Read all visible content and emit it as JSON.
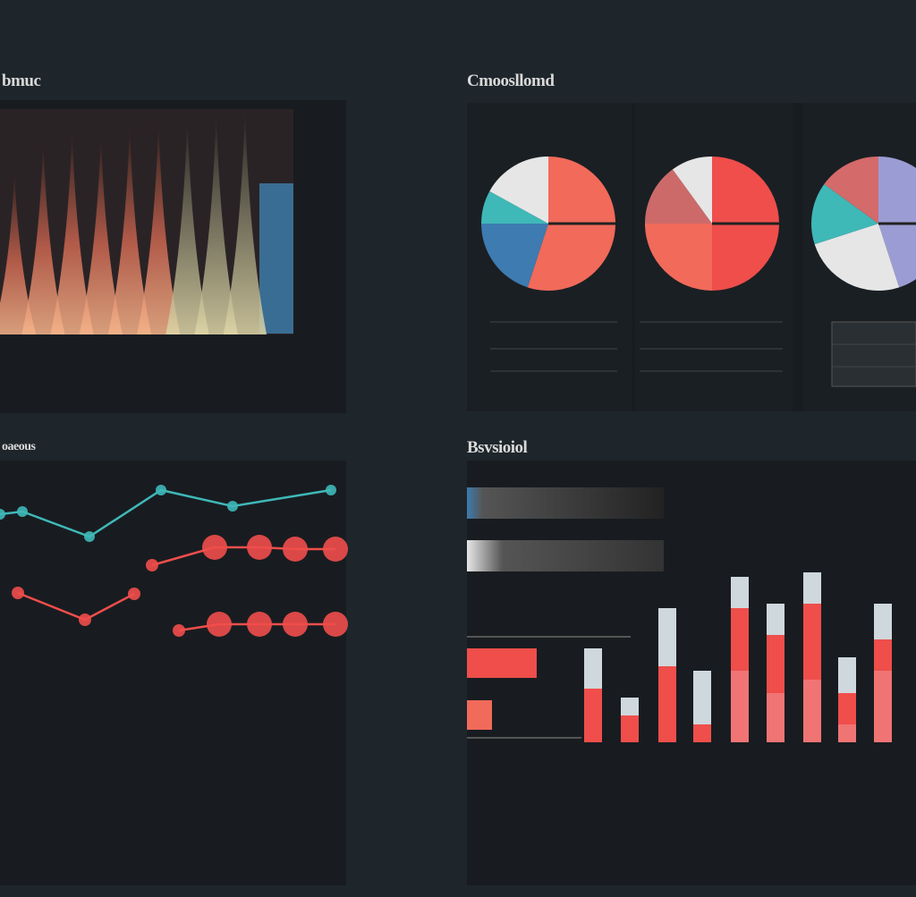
{
  "titles": {
    "top_left": "bmuc",
    "top_right": "Cmoosllomd",
    "bottom_left": "oaeous",
    "bottom_right": "Bsvsioiol"
  },
  "colors": {
    "background": "#1e262b",
    "panel": "#181c20",
    "red": "#ef4e4b",
    "salmon": "#f16a5a",
    "teal": "#3fb8b8",
    "blue": "#3d7bb0",
    "light_gray": "#cfd8dc",
    "lavender": "#9c9cd4"
  },
  "chart_data": [
    {
      "type": "area",
      "panel": "top-left",
      "series_count": 9,
      "description": "stacked glowing spikes",
      "values": [
        72,
        85,
        90,
        88,
        92,
        94,
        96,
        98,
        100
      ]
    },
    {
      "type": "pie",
      "panel": "top-right-1",
      "slices": [
        {
          "value": 55,
          "color": "#f16a5a"
        },
        {
          "value": 20,
          "color": "#3d7bb0"
        },
        {
          "value": 8,
          "color": "#3fb8b8"
        },
        {
          "value": 17,
          "color": "#e6e6e6"
        }
      ]
    },
    {
      "type": "pie",
      "panel": "top-right-2",
      "slices": [
        {
          "value": 50,
          "color": "#ef4e4b"
        },
        {
          "value": 25,
          "color": "#f16a5a"
        },
        {
          "value": 15,
          "color": "#cc6a6a"
        },
        {
          "value": 10,
          "color": "#e6e6e6"
        }
      ]
    },
    {
      "type": "pie",
      "panel": "top-right-3",
      "slices": [
        {
          "value": 45,
          "color": "#9c9cd4"
        },
        {
          "value": 25,
          "color": "#e6e6e6"
        },
        {
          "value": 15,
          "color": "#3fb8b8"
        },
        {
          "value": 15,
          "color": "#d46a6a"
        }
      ]
    },
    {
      "type": "line",
      "panel": "bottom-left",
      "series": [
        {
          "color": "#3fb8b8",
          "points": [
            [
              0,
              575
            ],
            [
              25,
              572
            ],
            [
              100,
              600
            ],
            [
              180,
              548
            ],
            [
              260,
              566
            ],
            [
              370,
              548
            ]
          ]
        },
        {
          "color": "#ef4e4b",
          "points": [
            [
              170,
              632
            ],
            [
              240,
              612
            ],
            [
              290,
              612
            ],
            [
              330,
              614
            ],
            [
              375,
              614
            ]
          ]
        },
        {
          "color": "#ef4e4b",
          "points": [
            [
              20,
              663
            ],
            [
              95,
              693
            ],
            [
              150,
              664
            ]
          ]
        },
        {
          "color": "#ef4e4b",
          "points": [
            [
              200,
              705
            ],
            [
              245,
              698
            ],
            [
              290,
              698
            ],
            [
              330,
              698
            ],
            [
              375,
              698
            ]
          ]
        }
      ]
    },
    {
      "type": "bar",
      "panel": "bottom-right",
      "stacked": true,
      "bars": [
        {
          "segments": [
            60,
            45
          ]
        },
        {
          "segments": [
            30,
            20
          ]
        },
        {
          "segments": [
            85,
            65
          ]
        },
        {
          "segments": [
            20,
            60
          ]
        },
        {
          "segments": [
            80,
            70,
            35
          ]
        },
        {
          "segments": [
            55,
            65,
            35
          ]
        },
        {
          "segments": [
            70,
            85,
            35
          ]
        },
        {
          "segments": [
            20,
            35,
            40
          ]
        },
        {
          "segments": [
            80,
            35,
            40
          ]
        }
      ],
      "hbars": [
        {
          "value": 220,
          "color": "#3d7bb0"
        },
        {
          "value": 205,
          "color": "#cfd8dc"
        },
        {
          "value": 78,
          "color": "#ef4e4b"
        },
        {
          "value": 28,
          "color": "#f16a5a"
        }
      ]
    }
  ]
}
